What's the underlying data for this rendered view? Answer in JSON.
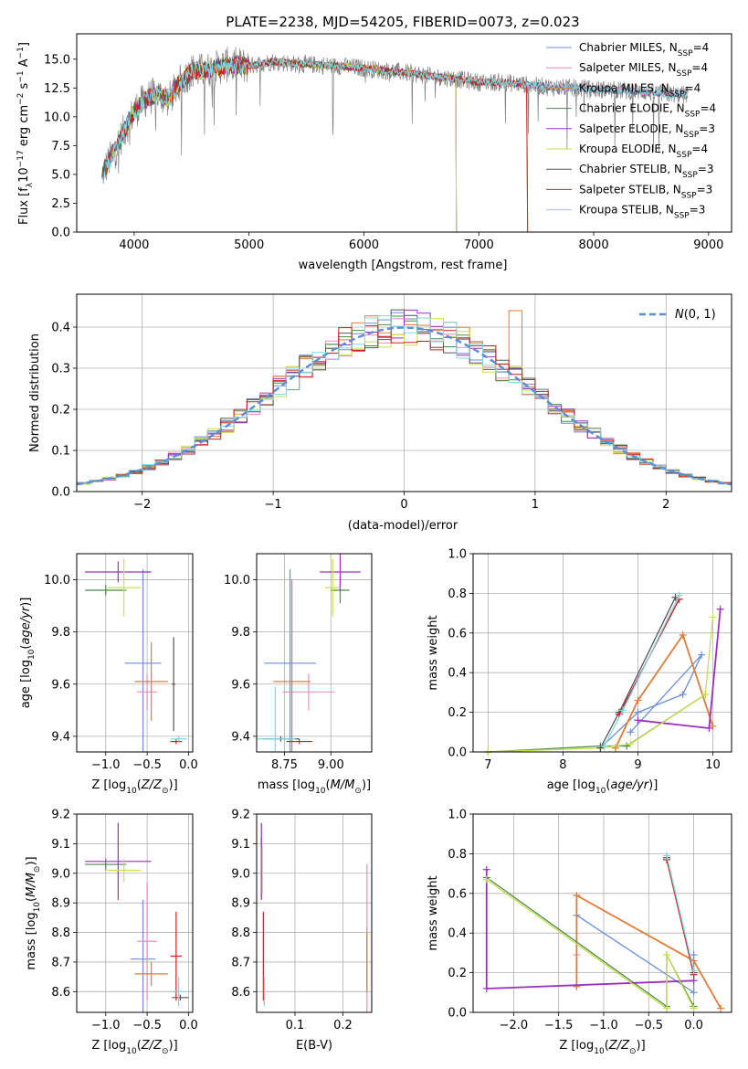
{
  "title": "PLATE=2238, MJD=54205, FIBERID=0073, z=0.023",
  "colors": {
    "Chabrier MILES": "#6a8fd8",
    "Salpeter MILES": "#f08cb4",
    "Kroupa MILES": "#e07b39",
    "Chabrier ELODIE": "#4d8a4d",
    "Salpeter ELODIE": "#9b30c0",
    "Kroupa ELODIE": "#c8e04a",
    "Chabrier STELIB": "#555555",
    "Salpeter STELIB": "#cc2020",
    "Kroupa STELIB": "#7fd8e0",
    "data": "#808080",
    "normal": "#5b8fd6"
  },
  "chart_data": [
    {
      "type": "line",
      "xlabel": "wavelength [Angstrom, rest frame]",
      "ylabel": "Flux [f_λ 10^-17 erg cm^-2 s^-1 A^-1]",
      "xlim": [
        3500,
        9200
      ],
      "ylim": [
        0,
        17.2
      ],
      "xticks": [
        "4000",
        "5000",
        "6000",
        "7000",
        "8000",
        "9000"
      ],
      "yticks": [
        "0.0",
        "2.5",
        "5.0",
        "7.5",
        "10.0",
        "12.5",
        "15.0"
      ],
      "grid": false,
      "legend": "top-right",
      "legend_entries": [
        "Chabrier MILES, N_SSP=4",
        "Salpeter MILES, N_SSP=4",
        "Kroupa MILES, N_SSP=4",
        "Chabrier ELODIE, N_SSP=4",
        "Salpeter ELODIE, N_SSP=3",
        "Kroupa ELODIE, N_SSP=4",
        "Chabrier STELIB, N_SSP=3",
        "Salpeter STELIB, N_SSP=3",
        "Kroupa STELIB, N_SSP=3"
      ],
      "continuum": {
        "x": [
          3720,
          3800,
          3900,
          4000,
          4100,
          4200,
          4300,
          4400,
          4500,
          4600,
          4700,
          4800,
          4900,
          5000,
          5200,
          5400,
          5600,
          5800,
          6000,
          6200,
          6400,
          6600,
          6800,
          7000,
          7200,
          7400,
          7600,
          7800,
          8000,
          8200,
          8400,
          8600,
          8800
        ],
        "y": [
          5.0,
          6.5,
          8.5,
          10.5,
          11.5,
          12.0,
          11.5,
          13.0,
          14.0,
          14.0,
          14.2,
          14.5,
          14.5,
          14.4,
          14.8,
          14.6,
          14.5,
          14.4,
          14.2,
          14.0,
          13.8,
          13.5,
          13.3,
          13.0,
          13.0,
          12.8,
          12.6,
          12.5,
          12.4,
          12.3,
          12.2,
          12.0,
          11.9
        ]
      }
    },
    {
      "type": "histogram",
      "xlabel": "(data-model)/error",
      "ylabel": "Normed distribution",
      "xlim": [
        -2.5,
        2.5
      ],
      "ylim": [
        0,
        0.48
      ],
      "xticks": [
        "−2",
        "−1",
        "0",
        "1",
        "2"
      ],
      "yticks": [
        "0.0",
        "0.1",
        "0.2",
        "0.3",
        "0.4"
      ],
      "grid": true,
      "legend": "top-right",
      "legend_entries": [
        "N(0,1)"
      ],
      "normal": {
        "mean": 0,
        "sigma": 1
      }
    },
    {
      "type": "scatter",
      "xlabel": "Z [log10(Z/Z⊙)]",
      "ylabel": "age  [log10(age/yr)]",
      "xlim": [
        -1.35,
        0.05
      ],
      "ylim": [
        9.34,
        10.1
      ],
      "xticks": [
        "−1.0",
        "−0.5",
        "0.0"
      ],
      "yticks": [
        "9.4",
        "9.6",
        "9.8",
        "10.0"
      ],
      "grid": true,
      "points": [
        {
          "model": "Chabrier MILES",
          "x": -0.55,
          "y": 9.68,
          "ex": 0.22,
          "ey": 0.36
        },
        {
          "model": "Salpeter MILES",
          "x": -0.5,
          "y": 9.57,
          "ex": 0.12,
          "ey": 0.07
        },
        {
          "model": "Kroupa MILES",
          "x": -0.45,
          "y": 9.61,
          "ex": 0.2,
          "ey": 0.15
        },
        {
          "model": "Chabrier ELODIE",
          "x": -1.0,
          "y": 9.96,
          "ex": 0.25,
          "ey": 0.02
        },
        {
          "model": "Salpeter ELODIE",
          "x": -0.85,
          "y": 10.03,
          "ex": 0.4,
          "ey": 0.04
        },
        {
          "model": "Kroupa ELODIE",
          "x": -0.78,
          "y": 9.97,
          "ex": 0.2,
          "ey": 0.11
        },
        {
          "model": "Chabrier STELIB",
          "x": -0.18,
          "y": 9.6,
          "ex": 0.02,
          "ey": 0.18
        },
        {
          "model": "Salpeter STELIB",
          "x": -0.15,
          "y": 9.38,
          "ex": 0.07,
          "ey": 0.01
        },
        {
          "model": "Kroupa STELIB",
          "x": -0.12,
          "y": 9.39,
          "ex": 0.1,
          "ey": 0.01
        }
      ]
    },
    {
      "type": "scatter",
      "xlabel": "mass [log10(M/M⊙)]",
      "ylabel": "",
      "xlim": [
        8.6,
        9.22
      ],
      "ylim": [
        9.34,
        10.1
      ],
      "xticks": [
        "8.75",
        "9.00"
      ],
      "yticks": [
        "9.4",
        "9.6",
        "9.8",
        "10.0"
      ],
      "grid": true,
      "points": [
        {
          "model": "Chabrier MILES",
          "x": 8.78,
          "y": 9.68,
          "ex": 0.14,
          "ey": 0.36
        },
        {
          "model": "Salpeter MILES",
          "x": 8.88,
          "y": 9.57,
          "ex": 0.14,
          "ey": 0.07
        },
        {
          "model": "Kroupa MILES",
          "x": 8.79,
          "y": 9.61,
          "ex": 0.1,
          "ey": 0.39
        },
        {
          "model": "Chabrier ELODIE",
          "x": 9.05,
          "y": 9.96,
          "ex": 0.05,
          "ey": 0.05
        },
        {
          "model": "Salpeter ELODIE",
          "x": 9.05,
          "y": 10.03,
          "ex": 0.11,
          "ey": 0.07
        },
        {
          "model": "Kroupa ELODIE",
          "x": 9.01,
          "y": 9.97,
          "ex": 0.04,
          "ey": 0.11
        },
        {
          "model": "Chabrier STELIB",
          "x": 8.73,
          "y": 9.39,
          "ex": 0.1,
          "ey": 0.01
        },
        {
          "model": "Salpeter STELIB",
          "x": 8.83,
          "y": 9.38,
          "ex": 0.07,
          "ey": 0.01
        },
        {
          "model": "Kroupa STELIB",
          "x": 8.7,
          "y": 9.39,
          "ex": 0.11,
          "ey": 0.2
        }
      ]
    },
    {
      "type": "line",
      "xlabel": "age  [log10(age/yr)]",
      "ylabel": "mass weight",
      "xlim": [
        6.8,
        10.25
      ],
      "ylim": [
        0,
        1
      ],
      "xticks": [
        "7",
        "8",
        "9",
        "10"
      ],
      "yticks": [
        "0.0",
        "0.2",
        "0.4",
        "0.6",
        "0.8",
        "1.0"
      ],
      "grid": true,
      "series": [
        {
          "model": "Chabrier MILES",
          "x": [
            8.5,
            9.0,
            9.6,
            9.85,
            8.9
          ],
          "y": [
            0.02,
            0.2,
            0.29,
            0.49,
            0.1
          ]
        },
        {
          "model": "Salpeter MILES",
          "x": [
            8.75,
            9.55
          ],
          "y": [
            0.19,
            0.77
          ]
        },
        {
          "model": "Kroupa MILES",
          "x": [
            8.7,
            9.0,
            9.6,
            10.0
          ],
          "y": [
            0.02,
            0.26,
            0.59,
            0.13
          ]
        },
        {
          "model": "Chabrier ELODIE",
          "x": [
            7.0,
            8.5,
            8.85,
            9.9
          ],
          "y": [
            0.0,
            0.03,
            0.03,
            0.29
          ]
        },
        {
          "model": "Salpeter ELODIE",
          "x": [
            9.0,
            9.95,
            10.1
          ],
          "y": [
            0.16,
            0.12,
            0.72
          ]
        },
        {
          "model": "Kroupa ELODIE",
          "x": [
            7.0,
            8.5,
            8.9,
            9.9,
            10.0
          ],
          "y": [
            0.0,
            0.02,
            0.04,
            0.29,
            0.68
          ]
        },
        {
          "model": "Chabrier STELIB",
          "x": [
            8.5,
            8.75,
            9.5
          ],
          "y": [
            0.02,
            0.2,
            0.78
          ]
        },
        {
          "model": "Salpeter STELIB",
          "x": [
            8.75,
            9.55
          ],
          "y": [
            0.19,
            0.77
          ]
        },
        {
          "model": "Kroupa STELIB",
          "x": [
            8.55,
            8.8,
            9.55
          ],
          "y": [
            0.03,
            0.21,
            0.79
          ]
        }
      ]
    },
    {
      "type": "scatter",
      "xlabel": "Z [log10(Z/Z⊙)]",
      "ylabel": "mass [log10(M/M⊙)]",
      "xlim": [
        -1.35,
        0.05
      ],
      "ylim": [
        8.53,
        9.2
      ],
      "xticks": [
        "−1.0",
        "−0.5",
        "0.0"
      ],
      "yticks": [
        "8.6",
        "8.7",
        "8.8",
        "8.9",
        "9.0",
        "9.1",
        "9.2"
      ],
      "grid": true,
      "points": [
        {
          "model": "Chabrier MILES",
          "x": -0.55,
          "y": 8.71,
          "ex": 0.15,
          "ey": 0.2
        },
        {
          "model": "Salpeter MILES",
          "x": -0.5,
          "y": 8.77,
          "ex": 0.12,
          "ey": 0.2
        },
        {
          "model": "Kroupa MILES",
          "x": -0.45,
          "y": 8.66,
          "ex": 0.2,
          "ey": 0.04
        },
        {
          "model": "Chabrier ELODIE",
          "x": -1.0,
          "y": 9.03,
          "ex": 0.25,
          "ey": 0.02
        },
        {
          "model": "Salpeter ELODIE",
          "x": -0.85,
          "y": 9.04,
          "ex": 0.4,
          "ey": 0.13
        },
        {
          "model": "Kroupa ELODIE",
          "x": -0.78,
          "y": 9.01,
          "ex": 0.2,
          "ey": 0.04
        },
        {
          "model": "Chabrier STELIB",
          "x": -0.1,
          "y": 8.58,
          "ex": 0.1,
          "ey": 0.01
        },
        {
          "model": "Salpeter STELIB",
          "x": -0.15,
          "y": 8.72,
          "ex": 0.07,
          "ey": 0.15
        },
        {
          "model": "Kroupa STELIB",
          "x": -0.12,
          "y": 8.6,
          "ex": 0.1,
          "ey": 0.05
        }
      ]
    },
    {
      "type": "scatter",
      "xlabel": "E(B-V)",
      "ylabel": "",
      "xlim": [
        0.02,
        0.26
      ],
      "ylim": [
        8.53,
        9.2
      ],
      "xticks": [
        "0.1",
        "0.2"
      ],
      "yticks": [
        "8.6",
        "8.7",
        "8.8",
        "8.9",
        "9.0",
        "9.1",
        "9.2"
      ],
      "grid": true,
      "points": [
        {
          "model": "Chabrier MILES",
          "x": 0.25,
          "y": 8.71,
          "ex": 0.0,
          "ey": 0.11
        },
        {
          "model": "Salpeter MILES",
          "x": 0.25,
          "y": 8.77,
          "ex": 0.0,
          "ey": 0.26
        },
        {
          "model": "Kroupa MILES",
          "x": 0.25,
          "y": 8.7,
          "ex": 0.0,
          "ey": 0.1
        },
        {
          "model": "Chabrier ELODIE",
          "x": 0.03,
          "y": 9.02,
          "ex": 0.0,
          "ey": 0.1
        },
        {
          "model": "Salpeter ELODIE",
          "x": 0.03,
          "y": 9.04,
          "ex": 0.0,
          "ey": 0.13
        },
        {
          "model": "Kroupa ELODIE",
          "x": 0.032,
          "y": 9.01,
          "ex": 0.0,
          "ey": 0.08
        },
        {
          "model": "Chabrier STELIB",
          "x": 0.036,
          "y": 8.58,
          "ex": 0.0,
          "ey": 0.02
        },
        {
          "model": "Salpeter STELIB",
          "x": 0.034,
          "y": 8.72,
          "ex": 0.0,
          "ey": 0.15
        },
        {
          "model": "Kroupa STELIB",
          "x": 0.036,
          "y": 8.6,
          "ex": 0.0,
          "ey": 0.05
        }
      ]
    },
    {
      "type": "line",
      "xlabel": "Z [log10(Z/Z⊙)]",
      "ylabel": "mass weight",
      "xlim": [
        -2.45,
        0.42
      ],
      "ylim": [
        0,
        1
      ],
      "xticks": [
        "−2.0",
        "−1.5",
        "−1.0",
        "−0.5",
        "0.0"
      ],
      "yticks": [
        "0.0",
        "0.2",
        "0.4",
        "0.6",
        "0.8",
        "1.0"
      ],
      "grid": true,
      "series": [
        {
          "model": "Chabrier MILES",
          "x": [
            -1.3,
            0.0,
            0.0
          ],
          "y": [
            0.49,
            0.1,
            0.29
          ]
        },
        {
          "model": "Salpeter MILES",
          "x": [
            -1.3,
            -1.3
          ],
          "y": [
            0.13,
            0.29
          ]
        },
        {
          "model": "Kroupa MILES",
          "x": [
            -1.3,
            -1.3,
            0.0,
            0.3
          ],
          "y": [
            0.13,
            0.59,
            0.26,
            0.02
          ]
        },
        {
          "model": "Chabrier ELODIE",
          "x": [
            -2.3,
            -0.3,
            -0.3,
            0.0
          ],
          "y": [
            0.68,
            0.03,
            0.29,
            0.03
          ]
        },
        {
          "model": "Salpeter ELODIE",
          "x": [
            -2.3,
            -2.3,
            0.0
          ],
          "y": [
            0.72,
            0.12,
            0.16
          ]
        },
        {
          "model": "Kroupa ELODIE",
          "x": [
            -2.3,
            -0.3,
            -0.3,
            0.0
          ],
          "y": [
            0.67,
            0.02,
            0.29,
            0.02
          ]
        },
        {
          "model": "Chabrier STELIB",
          "x": [
            -0.3,
            0.0
          ],
          "y": [
            0.78,
            0.2
          ]
        },
        {
          "model": "Salpeter STELIB",
          "x": [
            -0.3,
            0.0
          ],
          "y": [
            0.77,
            0.19
          ]
        },
        {
          "model": "Kroupa STELIB",
          "x": [
            -0.3,
            0.0
          ],
          "y": [
            0.79,
            0.21
          ]
        }
      ]
    }
  ]
}
